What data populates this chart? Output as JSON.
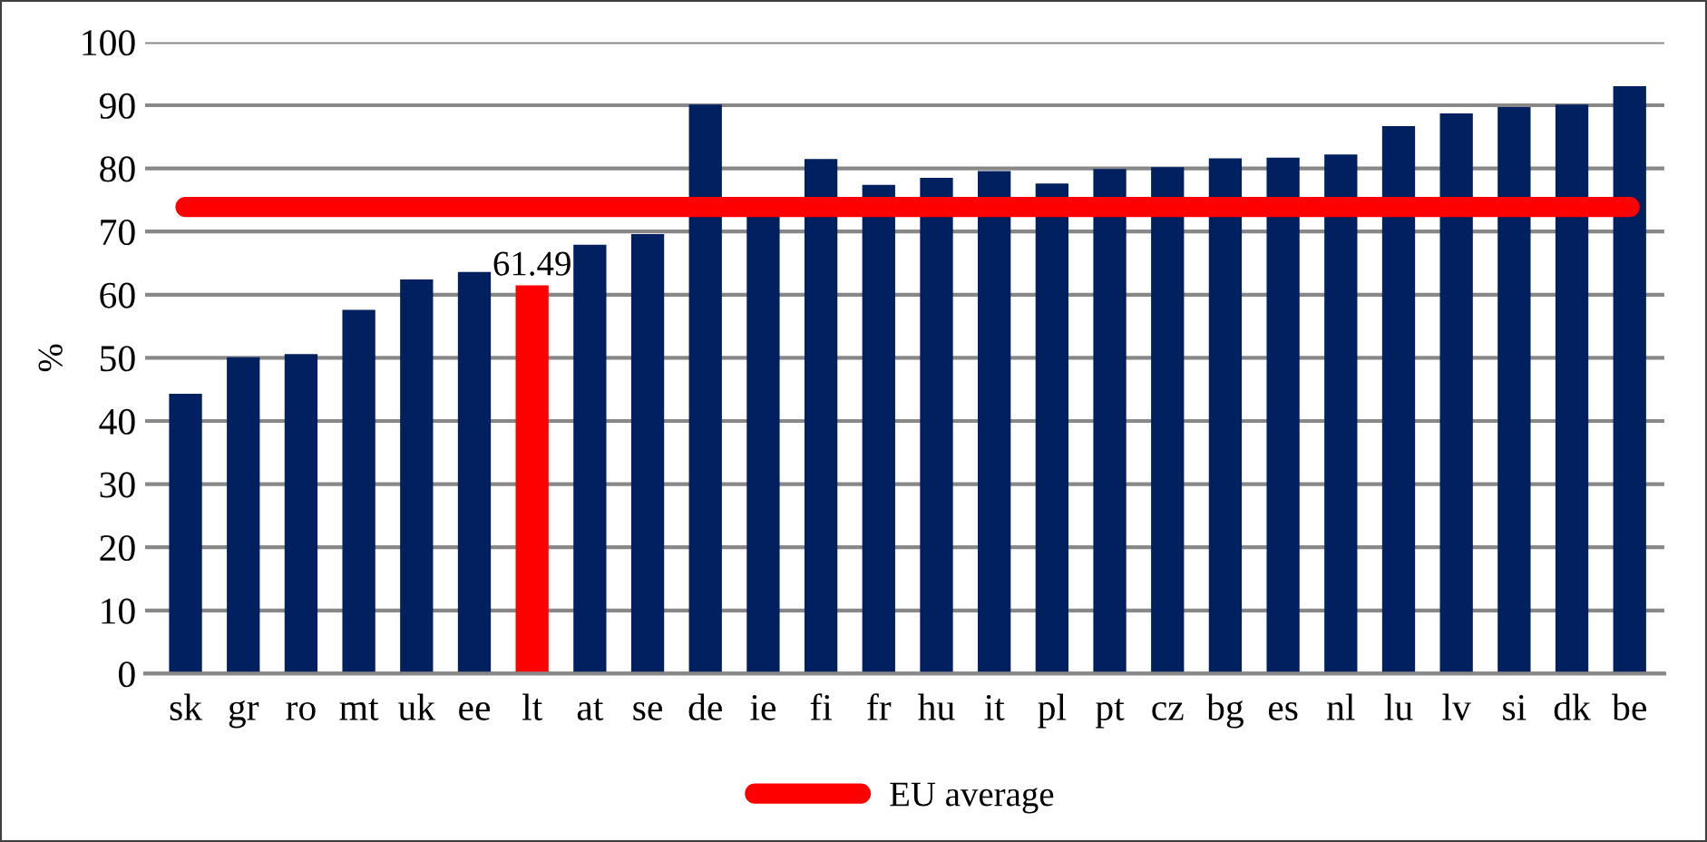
{
  "chart_data": {
    "type": "bar",
    "ylabel": "%",
    "categories": [
      "sk",
      "gr",
      "ro",
      "mt",
      "uk",
      "ee",
      "lt",
      "at",
      "se",
      "de",
      "ie",
      "fi",
      "fr",
      "hu",
      "it",
      "pl",
      "pt",
      "cz",
      "bg",
      "es",
      "nl",
      "lu",
      "lv",
      "si",
      "dk",
      "be"
    ],
    "series": [
      {
        "colors": [
          "#002060",
          "#002060",
          "#002060",
          "#002060",
          "#002060",
          "#002060",
          "#ff0000",
          "#002060",
          "#002060",
          "#002060",
          "#002060",
          "#002060",
          "#002060",
          "#002060",
          "#002060",
          "#002060",
          "#002060",
          "#002060",
          "#002060",
          "#002060",
          "#002060",
          "#002060",
          "#002060",
          "#002060",
          "#002060",
          "#002060"
        ],
        "values": [
          44.3,
          50.1,
          50.6,
          57.6,
          62.4,
          63.6,
          61.49,
          67.9,
          69.6,
          90.1,
          73.0,
          81.5,
          77.4,
          78.5,
          79.6,
          77.6,
          79.9,
          80.2,
          81.6,
          81.7,
          82.2,
          86.7,
          88.7,
          89.7,
          90.1,
          93.0
        ],
        "value_labels": [
          null,
          null,
          null,
          null,
          null,
          null,
          "61.49",
          null,
          null,
          null,
          null,
          null,
          null,
          null,
          null,
          null,
          null,
          null,
          null,
          null,
          null,
          null,
          null,
          null,
          null,
          null
        ]
      },
      {
        "type": "line",
        "name": "EU average",
        "color": "#ff0000",
        "values": [
          73.9,
          73.9,
          73.9,
          73.9,
          73.9,
          73.9,
          73.9,
          73.9,
          73.9,
          73.9,
          73.9,
          73.9,
          73.9,
          73.9,
          73.9,
          73.9,
          73.9,
          73.9,
          73.9,
          73.9,
          73.9,
          73.9,
          73.9,
          73.9,
          73.9,
          73.9
        ]
      }
    ],
    "ylim": [
      0,
      100
    ],
    "yticks": [
      0,
      10,
      20,
      30,
      40,
      50,
      60,
      70,
      80,
      90,
      100
    ],
    "grid": "y",
    "legend": "bottom",
    "line_style": "solid"
  }
}
